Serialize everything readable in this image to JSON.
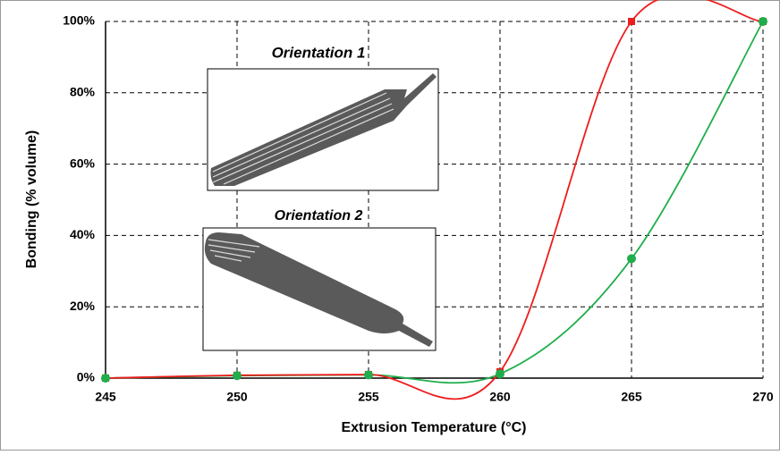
{
  "chart_data": {
    "type": "line",
    "x_label": "Extrusion Temperature (°C)",
    "y_label": "Bonding (% volume)",
    "x": [
      245,
      250,
      255,
      260,
      265,
      270
    ],
    "series": [
      {
        "name": "Orientation 1",
        "color": "#1fae4b",
        "marker": "circle",
        "values": [
          0,
          0.7,
          0.9,
          1.2,
          33.5,
          100
        ]
      },
      {
        "name": "Orientation 2",
        "color": "#ee1c1c",
        "marker": "square",
        "values": [
          0,
          0.8,
          1.0,
          1.8,
          100,
          100
        ]
      }
    ],
    "xlim": [
      245,
      270
    ],
    "xticks": [
      245,
      250,
      255,
      260,
      265,
      270
    ],
    "ylim": [
      0,
      100
    ],
    "yticks": [
      {
        "value": 0,
        "label": "0%"
      },
      {
        "value": 20,
        "label": "20%"
      },
      {
        "value": 40,
        "label": "40%"
      },
      {
        "value": 60,
        "label": "60%"
      },
      {
        "value": 80,
        "label": "80%"
      },
      {
        "value": 100,
        "label": "100%"
      }
    ],
    "grid": true
  }
}
